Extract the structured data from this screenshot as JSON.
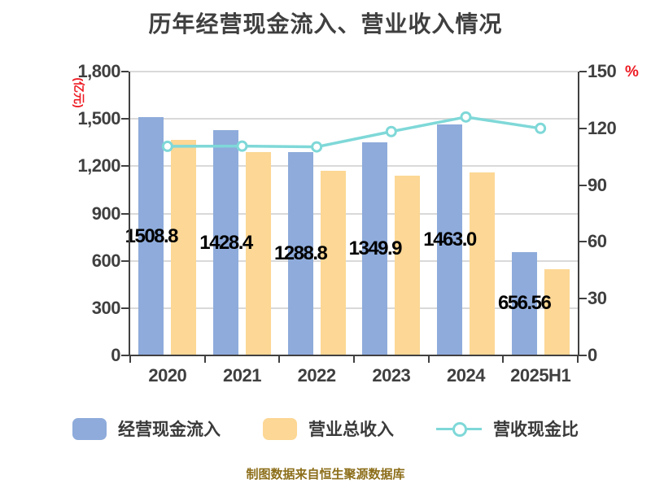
{
  "title": "历年经营现金流入、营业收入情况",
  "footer": "制图数据来自恒生聚源数据库",
  "left_axis": {
    "unit": "(亿元)",
    "ticks": [
      "1,800",
      "1,500",
      "1,200",
      "900",
      "600",
      "300",
      "0"
    ],
    "min": 0,
    "max": 1800
  },
  "right_axis": {
    "unit": "%",
    "ticks": [
      "150",
      "120",
      "90",
      "60",
      "30",
      "0"
    ],
    "min": 0,
    "max": 150
  },
  "legend": {
    "items": [
      {
        "label": "经营现金流入",
        "marker": "bar-swatch"
      },
      {
        "label": "营业总收入",
        "marker": "bar-swatch"
      },
      {
        "label": "营收现金比",
        "marker": "line-with-circle"
      }
    ]
  },
  "colors": {
    "cash_inflow_bar": "#8EABDB",
    "revenue_bar": "#FCD795",
    "ratio_line": "#7FD8D8",
    "ratio_marker_fill": "#FFFFFF",
    "axis_text": "#3F3F3F",
    "unit_text": "#ED1C24",
    "grid": "#D9D9D9",
    "bar_label": "#000000",
    "footer_text": "#8C6E1A"
  },
  "chart_data": {
    "type": "bar",
    "subtype": "grouped bars with overlay line on secondary axis",
    "title": "历年经营现金流入、营业收入情况",
    "categories": [
      "2020",
      "2021",
      "2022",
      "2023",
      "2024",
      "2025H1"
    ],
    "series": [
      {
        "name": "经营现金流入",
        "type": "bar",
        "axis": "left",
        "values": [
          1508.8,
          1428.4,
          1288.8,
          1349.9,
          1463.0,
          656.56
        ],
        "data_labels": [
          "1508.8",
          "1428.4",
          "1288.8",
          "1349.9",
          "1463.0",
          "656.56"
        ]
      },
      {
        "name": "营业总收入",
        "type": "bar",
        "axis": "left",
        "values_estimated": [
          1365,
          1291,
          1169,
          1141,
          1161,
          547
        ],
        "data_labels": null
      },
      {
        "name": "营收现金比",
        "type": "line",
        "axis": "right",
        "values_estimated": [
          110.5,
          110.6,
          110.2,
          118.3,
          126.0,
          120.0
        ],
        "data_labels": null
      }
    ],
    "left_ylabel": "(亿元)",
    "right_ylabel": "%",
    "left_ylim": [
      0,
      1800
    ],
    "right_ylim": [
      0,
      150
    ],
    "grid": true,
    "legend_position": "bottom"
  }
}
